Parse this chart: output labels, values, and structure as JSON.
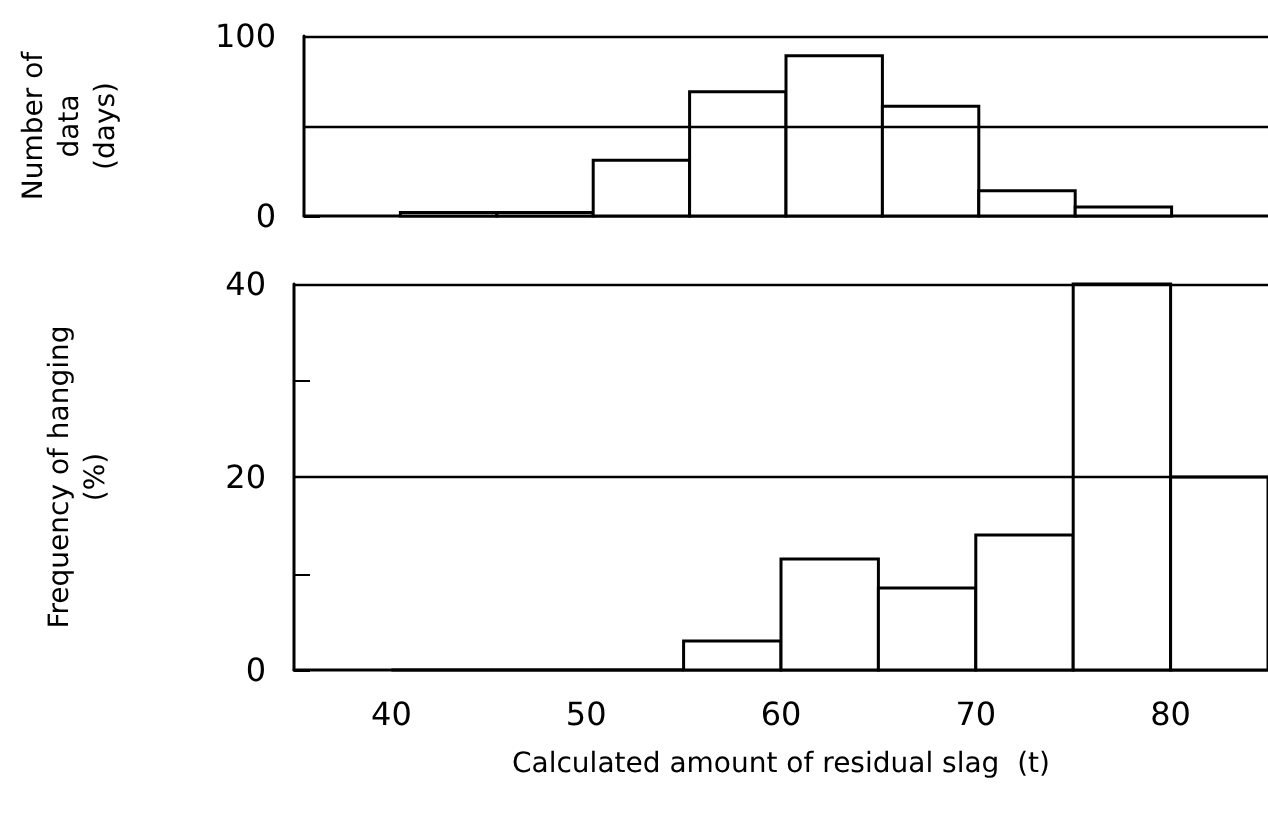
{
  "chart_data": [
    {
      "type": "histogram",
      "ylabel": "Number of\ndata\n(days)",
      "bins": [
        40,
        45,
        50,
        55,
        60,
        65,
        70,
        75,
        80
      ],
      "values": [
        2,
        2,
        31,
        69,
        89,
        61,
        14,
        5
      ],
      "color": "#ffffff",
      "xlim": [
        35,
        85
      ],
      "xticks": [
        40,
        50,
        60,
        70,
        80
      ],
      "ylim": [
        0,
        100
      ],
      "yticks": [
        0,
        100
      ],
      "ref_lines": [
        {
          "axis": "y",
          "value": 50
        },
        {
          "axis": "y",
          "value": 100
        }
      ],
      "tick_labels": "y"
    },
    {
      "type": "histogram",
      "ylabel": "Frequency of hanging\n(%)",
      "xlabel": "Calculated amount of residual slag  (t)",
      "bins": [
        40,
        45,
        50,
        55,
        60,
        65,
        70,
        75,
        80,
        85
      ],
      "values": [
        0,
        0,
        0,
        3,
        11.5,
        8.5,
        14,
        40,
        20
      ],
      "color": "#ffffff",
      "xlim": [
        35,
        85
      ],
      "xticks": [
        40,
        50,
        60,
        70,
        80
      ],
      "ylim": [
        0,
        40
      ],
      "yticks": [
        0,
        {
          "value": 10,
          "label": null
        },
        20,
        {
          "value": 30,
          "label": null
        },
        40
      ],
      "grid": "y"
    }
  ]
}
